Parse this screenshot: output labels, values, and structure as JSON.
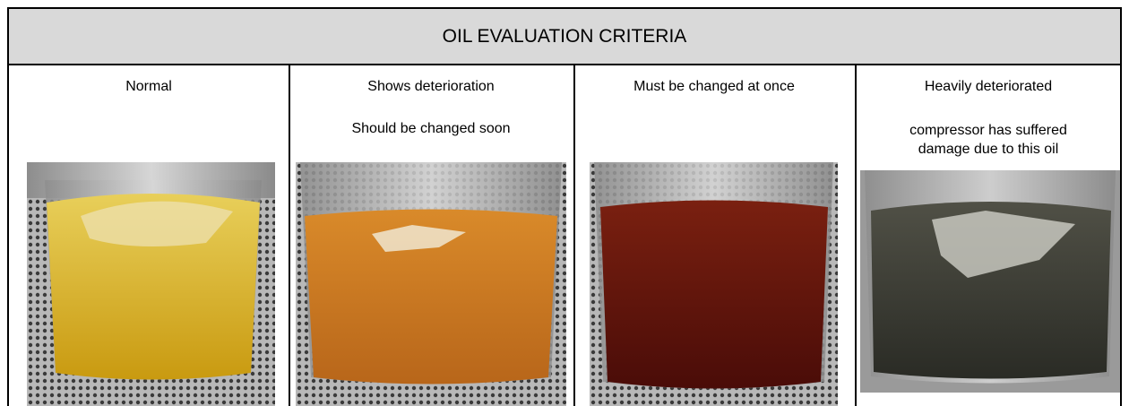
{
  "header": {
    "title": "OIL EVALUATION CRITERIA"
  },
  "columns": [
    {
      "lines": [
        "Normal"
      ]
    },
    {
      "lines": [
        "Shows deterioration",
        "Should be changed soon"
      ]
    },
    {
      "lines": [
        "Must be changed at once"
      ]
    },
    {
      "lines": [
        "Heavily deteriorated",
        "compressor has suffered",
        "damage due to this oil"
      ]
    }
  ]
}
